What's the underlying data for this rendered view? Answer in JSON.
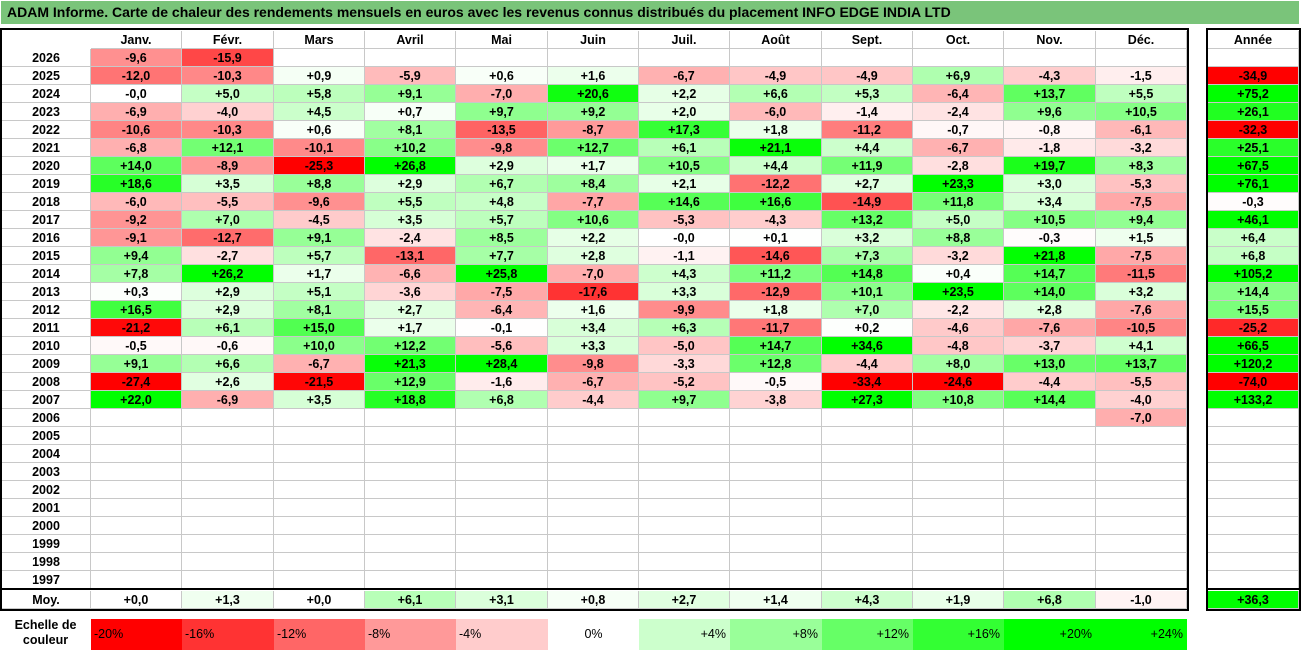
{
  "title": "ADAM Informe. Carte de chaleur des rendements mensuels en euros avec les revenus connus distribués du placement INFO EDGE INDIA LTD",
  "colors": {
    "title_bg": "#7ac47a",
    "neg_max": "#ff0000",
    "pos_max": "#00ff00"
  },
  "chart_data": {
    "type": "heatmap",
    "months": [
      "Janv.",
      "Févr.",
      "Mars",
      "Avril",
      "Mai",
      "Juin",
      "Juil.",
      "Août",
      "Sept.",
      "Oct.",
      "Nov.",
      "Déc."
    ],
    "year_header": "Année",
    "rows": [
      {
        "year": "2026",
        "months": [
          "-9,6",
          "-15,9",
          "",
          "",
          "",
          "",
          "",
          "",
          "",
          "",
          "",
          ""
        ],
        "annual": ""
      },
      {
        "year": "2025",
        "months": [
          "-12,0",
          "-10,3",
          "+0,9",
          "-5,9",
          "+0,6",
          "+1,6",
          "-6,7",
          "-4,9",
          "-4,9",
          "+6,9",
          "-4,3",
          "-1,5"
        ],
        "annual": "-34,9"
      },
      {
        "year": "2024",
        "months": [
          "-0,0",
          "+5,0",
          "+5,8",
          "+9,1",
          "-7,0",
          "+20,6",
          "+2,2",
          "+6,6",
          "+5,3",
          "-6,4",
          "+13,7",
          "+5,5"
        ],
        "annual": "+75,2"
      },
      {
        "year": "2023",
        "months": [
          "-6,9",
          "-4,0",
          "+4,5",
          "+0,7",
          "+9,7",
          "+9,2",
          "+2,0",
          "-6,0",
          "-1,4",
          "-2,4",
          "+9,6",
          "+10,5"
        ],
        "annual": "+26,1"
      },
      {
        "year": "2022",
        "months": [
          "-10,6",
          "-10,3",
          "+0,6",
          "+8,1",
          "-13,5",
          "-8,7",
          "+17,3",
          "+1,8",
          "-11,2",
          "-0,7",
          "-0,8",
          "-6,1"
        ],
        "annual": "-32,3"
      },
      {
        "year": "2021",
        "months": [
          "-6,8",
          "+12,1",
          "-10,1",
          "+10,2",
          "-9,8",
          "+12,7",
          "+6,1",
          "+21,1",
          "+4,4",
          "-6,7",
          "-1,8",
          "-3,2"
        ],
        "annual": "+25,1"
      },
      {
        "year": "2020",
        "months": [
          "+14,0",
          "-8,9",
          "-25,3",
          "+26,8",
          "+2,9",
          "+1,7",
          "+10,5",
          "+4,4",
          "+11,9",
          "-2,8",
          "+19,7",
          "+8,3"
        ],
        "annual": "+67,5"
      },
      {
        "year": "2019",
        "months": [
          "+18,6",
          "+3,5",
          "+8,8",
          "+2,9",
          "+6,7",
          "+8,4",
          "+2,1",
          "-12,2",
          "+2,7",
          "+23,3",
          "+3,0",
          "-5,3"
        ],
        "annual": "+76,1"
      },
      {
        "year": "2018",
        "months": [
          "-6,0",
          "-5,5",
          "-9,6",
          "+5,5",
          "+4,8",
          "-7,7",
          "+14,6",
          "+16,6",
          "-14,9",
          "+11,8",
          "+3,4",
          "-7,5"
        ],
        "annual": "-0,3"
      },
      {
        "year": "2017",
        "months": [
          "-9,2",
          "+7,0",
          "-4,5",
          "+3,5",
          "+5,7",
          "+10,6",
          "-5,3",
          "-4,3",
          "+13,2",
          "+5,0",
          "+10,5",
          "+9,4"
        ],
        "annual": "+46,1"
      },
      {
        "year": "2016",
        "months": [
          "-9,1",
          "-12,7",
          "+9,1",
          "-2,4",
          "+8,5",
          "+2,2",
          "-0,0",
          "+0,1",
          "+3,2",
          "+8,8",
          "-0,3",
          "+1,5"
        ],
        "annual": "+6,4"
      },
      {
        "year": "2015",
        "months": [
          "+9,4",
          "-2,7",
          "+5,7",
          "-13,1",
          "+7,7",
          "+2,8",
          "-1,1",
          "-14,6",
          "+7,3",
          "-3,2",
          "+21,8",
          "-7,5"
        ],
        "annual": "+6,8"
      },
      {
        "year": "2014",
        "months": [
          "+7,8",
          "+26,2",
          "+1,7",
          "-6,6",
          "+25,8",
          "-7,0",
          "+4,3",
          "+11,2",
          "+14,8",
          "+0,4",
          "+14,7",
          "-11,5"
        ],
        "annual": "+105,2"
      },
      {
        "year": "2013",
        "months": [
          "+0,3",
          "+2,9",
          "+5,1",
          "-3,6",
          "-7,5",
          "-17,6",
          "+3,3",
          "-12,9",
          "+10,1",
          "+23,5",
          "+14,0",
          "+3,2"
        ],
        "annual": "+14,4"
      },
      {
        "year": "2012",
        "months": [
          "+16,5",
          "+2,9",
          "+8,1",
          "+2,7",
          "-6,4",
          "+1,6",
          "-9,9",
          "+1,8",
          "+7,0",
          "-2,2",
          "+2,8",
          "-7,6"
        ],
        "annual": "+15,5"
      },
      {
        "year": "2011",
        "months": [
          "-21,2",
          "+6,1",
          "+15,0",
          "+1,7",
          "-0,1",
          "+3,4",
          "+6,3",
          "-11,7",
          "+0,2",
          "-4,6",
          "-7,6",
          "-10,5"
        ],
        "annual": "-25,2"
      },
      {
        "year": "2010",
        "months": [
          "-0,5",
          "-0,6",
          "+10,0",
          "+12,2",
          "-5,6",
          "+3,3",
          "-5,0",
          "+14,7",
          "+34,6",
          "-4,8",
          "-3,7",
          "+4,1"
        ],
        "annual": "+66,5"
      },
      {
        "year": "2009",
        "months": [
          "+9,1",
          "+6,6",
          "-6,7",
          "+21,3",
          "+28,4",
          "-9,8",
          "-3,3",
          "+12,8",
          "-4,4",
          "+8,0",
          "+13,0",
          "+13,7"
        ],
        "annual": "+120,2"
      },
      {
        "year": "2008",
        "months": [
          "-27,4",
          "+2,6",
          "-21,5",
          "+12,9",
          "-1,6",
          "-6,7",
          "-5,2",
          "-0,5",
          "-33,4",
          "-24,6",
          "-4,4",
          "-5,5"
        ],
        "annual": "-74,0"
      },
      {
        "year": "2007",
        "months": [
          "+22,0",
          "-6,9",
          "+3,5",
          "+18,8",
          "+6,8",
          "-4,4",
          "+9,7",
          "-3,8",
          "+27,3",
          "+10,8",
          "+14,4",
          "-4,0"
        ],
        "annual": "+133,2"
      },
      {
        "year": "2006",
        "months": [
          "",
          "",
          "",
          "",
          "",
          "",
          "",
          "",
          "",
          "",
          "",
          "-7,0"
        ],
        "annual": ""
      },
      {
        "year": "2005",
        "months": [
          "",
          "",
          "",
          "",
          "",
          "",
          "",
          "",
          "",
          "",
          "",
          ""
        ],
        "annual": ""
      },
      {
        "year": "2004",
        "months": [
          "",
          "",
          "",
          "",
          "",
          "",
          "",
          "",
          "",
          "",
          "",
          ""
        ],
        "annual": ""
      },
      {
        "year": "2003",
        "months": [
          "",
          "",
          "",
          "",
          "",
          "",
          "",
          "",
          "",
          "",
          "",
          ""
        ],
        "annual": ""
      },
      {
        "year": "2002",
        "months": [
          "",
          "",
          "",
          "",
          "",
          "",
          "",
          "",
          "",
          "",
          "",
          ""
        ],
        "annual": ""
      },
      {
        "year": "2001",
        "months": [
          "",
          "",
          "",
          "",
          "",
          "",
          "",
          "",
          "",
          "",
          "",
          ""
        ],
        "annual": ""
      },
      {
        "year": "2000",
        "months": [
          "",
          "",
          "",
          "",
          "",
          "",
          "",
          "",
          "",
          "",
          "",
          ""
        ],
        "annual": ""
      },
      {
        "year": "1999",
        "months": [
          "",
          "",
          "",
          "",
          "",
          "",
          "",
          "",
          "",
          "",
          "",
          ""
        ],
        "annual": ""
      },
      {
        "year": "1998",
        "months": [
          "",
          "",
          "",
          "",
          "",
          "",
          "",
          "",
          "",
          "",
          "",
          ""
        ],
        "annual": ""
      },
      {
        "year": "1997",
        "months": [
          "",
          "",
          "",
          "",
          "",
          "",
          "",
          "",
          "",
          "",
          "",
          ""
        ],
        "annual": ""
      }
    ],
    "average": {
      "label": "Moy.",
      "months": [
        "+0,0",
        "+1,3",
        "+0,0",
        "+6,1",
        "+3,1",
        "+0,8",
        "+2,7",
        "+1,4",
        "+4,3",
        "+1,9",
        "+6,8",
        "-1,0"
      ],
      "annual": "+36,3"
    },
    "scale": {
      "label": "Echelle de couleur",
      "steps": [
        {
          "label": "-20%",
          "value": -20
        },
        {
          "label": "-16%",
          "value": -16
        },
        {
          "label": "-12%",
          "value": -12
        },
        {
          "label": "-8%",
          "value": -8
        },
        {
          "label": "-4%",
          "value": -4
        },
        {
          "label": "0%",
          "value": 0
        },
        {
          "label": "+4%",
          "value": 4
        },
        {
          "label": "+8%",
          "value": 8
        },
        {
          "label": "+12%",
          "value": 12
        },
        {
          "label": "+16%",
          "value": 16
        },
        {
          "label": "+20%",
          "value": 20
        },
        {
          "label": "+24%",
          "value": 24
        }
      ]
    }
  }
}
